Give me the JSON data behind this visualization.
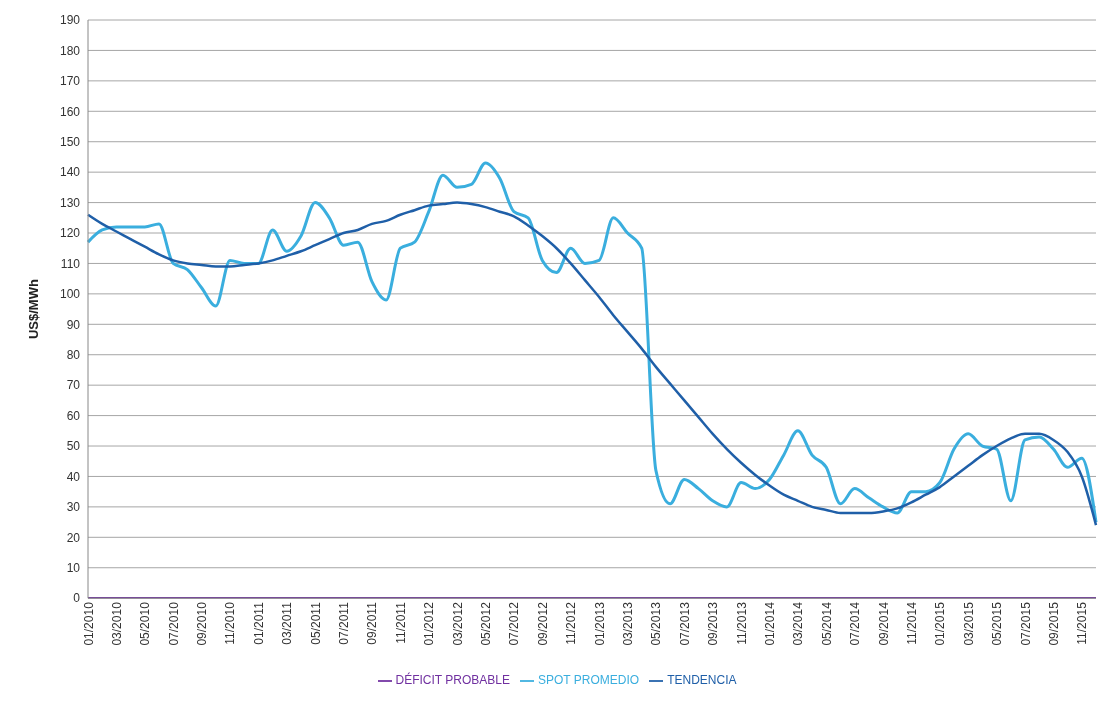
{
  "chart_data": {
    "type": "line",
    "ylabel": "US$/MWh",
    "categories": [
      "01/2010",
      null,
      "03/2010",
      null,
      "05/2010",
      null,
      "07/2010",
      null,
      "09/2010",
      null,
      "11/2010",
      null,
      "01/2011",
      null,
      "03/2011",
      null,
      "05/2011",
      null,
      "07/2011",
      null,
      "09/2011",
      null,
      "11/2011",
      null,
      "01/2012",
      null,
      "03/2012",
      null,
      "05/2012",
      null,
      "07/2012",
      null,
      "09/2012",
      null,
      "11/2012",
      null,
      "01/2013",
      null,
      "03/2013",
      null,
      "05/2013",
      null,
      "07/2013",
      null,
      "09/2013",
      null,
      "11/2013",
      null,
      "01/2014",
      null,
      "03/2014",
      null,
      "05/2014",
      null,
      "07/2014",
      null,
      "09/2014",
      null,
      "11/2014",
      null,
      "01/2015",
      null,
      "03/2015",
      null,
      "05/2015",
      null,
      "07/2015",
      null,
      "09/2015",
      null,
      "11/2015",
      null
    ],
    "series": [
      {
        "name": "SPOT PROMEDIO",
        "color": "#3aaede",
        "values": [
          117,
          121,
          122,
          122,
          122,
          123,
          110,
          108,
          102,
          96,
          111,
          110,
          110,
          121,
          114,
          119,
          130,
          125,
          116,
          117,
          104,
          98,
          115,
          117,
          127,
          139,
          135,
          136,
          143,
          138,
          127,
          125,
          111,
          107,
          115,
          110,
          111,
          125,
          120,
          115,
          42,
          31,
          39,
          36,
          32,
          30,
          38,
          36,
          39,
          47,
          55,
          47,
          43,
          31,
          36,
          33,
          30,
          28,
          35,
          35,
          38,
          49,
          54,
          50,
          49,
          32,
          52,
          53,
          49,
          43,
          46,
          25
        ]
      },
      {
        "name": "DÉFICIT PROBABLE",
        "color": "#7030a0",
        "values": [
          0,
          0,
          0,
          0,
          0,
          0,
          0,
          0,
          0,
          0,
          0,
          0,
          0,
          0,
          0,
          0,
          0,
          0,
          0,
          0,
          0,
          0,
          0,
          0,
          0,
          0,
          0,
          0,
          0,
          0,
          0,
          0,
          0,
          0,
          0,
          0,
          0,
          0,
          0,
          0,
          0,
          0,
          0,
          0,
          0,
          0,
          0,
          0,
          0,
          0,
          0,
          0,
          0,
          0,
          0,
          0,
          0,
          0,
          0,
          0,
          0,
          0,
          0,
          0,
          0,
          0,
          0,
          0,
          0,
          0,
          0,
          0
        ]
      },
      {
        "name": "TENDENCIA",
        "color": "#1f5fa8",
        "values": [
          126,
          123,
          120.5,
          118,
          115.5,
          113,
          111,
          110,
          109.5,
          109,
          109,
          109.5,
          110,
          111,
          112.5,
          114,
          116,
          118,
          120,
          121,
          123,
          124,
          126,
          127.5,
          129,
          129.5,
          130,
          129.5,
          128.5,
          127,
          125.5,
          122.5,
          119,
          115,
          110,
          104.5,
          99,
          93,
          87.5,
          82,
          76,
          70.5,
          65,
          59.5,
          54,
          49,
          44.5,
          40.5,
          37,
          34,
          32,
          30,
          29,
          28,
          28,
          28,
          28.5,
          29.5,
          31.5,
          34,
          36.5,
          40,
          43.5,
          47,
          50,
          52.5,
          54,
          54,
          52,
          48,
          40,
          24
        ]
      }
    ],
    "ylim": [
      0,
      190
    ],
    "yticks": [
      0,
      10,
      20,
      30,
      40,
      50,
      60,
      70,
      80,
      90,
      100,
      110,
      120,
      130,
      140,
      150,
      160,
      170,
      180,
      190
    ],
    "grid": "y",
    "legend": "bottom",
    "marker": "none",
    "line_style": "solid"
  }
}
